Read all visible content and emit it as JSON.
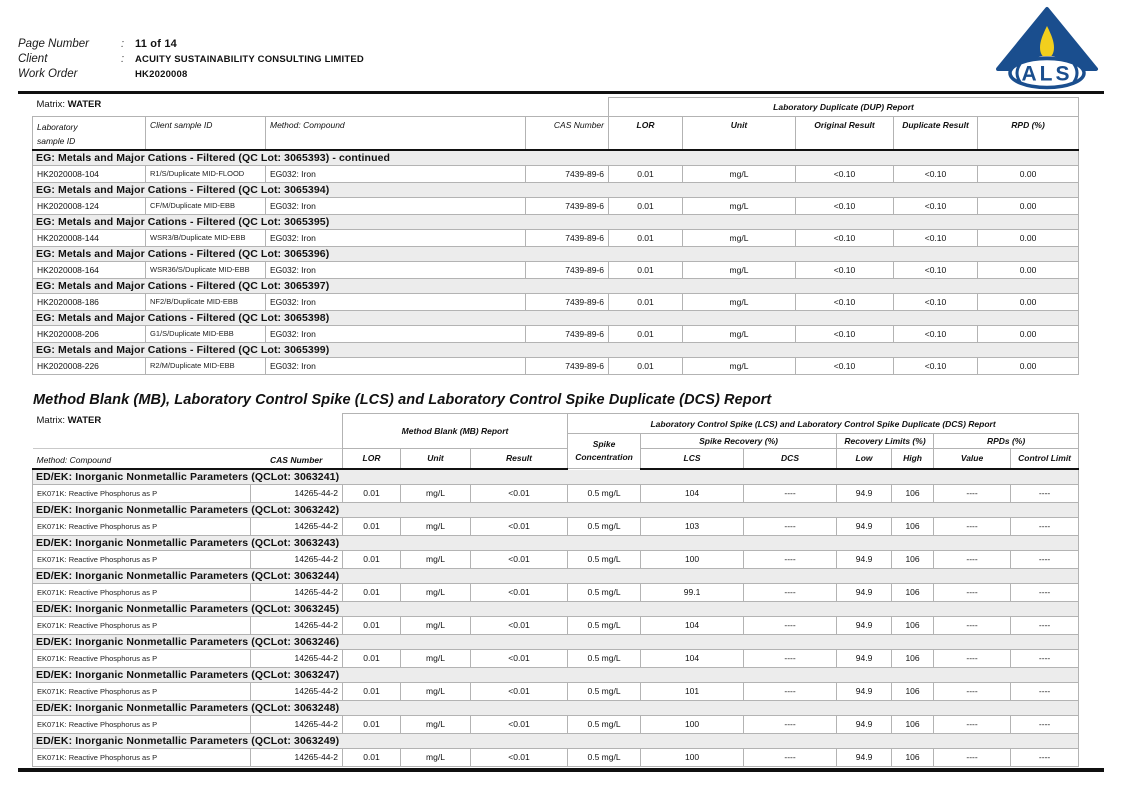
{
  "page_header": {
    "fields": [
      {
        "label": "Page Number",
        "separator": ":",
        "value": "11 of 14"
      },
      {
        "label": "Client",
        "separator": ":",
        "value": "ACUITY SUSTAINABILITY CONSULTING LIMITED"
      },
      {
        "label": "Work Order",
        "separator": ":",
        "value": "HK2020008"
      }
    ],
    "logo_text": "ALS"
  },
  "dup_table": {
    "matrix_label": "Matrix:",
    "matrix_value": "WATER",
    "span_header": "Laboratory Duplicate (DUP) Report",
    "headers": {
      "lab_line1": "Laboratory",
      "lab_line2": "sample ID",
      "client_sample_id": "Client sample ID",
      "method_compound": "Method: Compound",
      "cas_number": "CAS Number",
      "lor": "LOR",
      "unit": "Unit",
      "original_result": "Original Result",
      "duplicate_result": "Duplicate Result",
      "rpd": "RPD (%)"
    },
    "sections": [
      {
        "title": "EG: Metals and Major Cations - Filtered  (QC Lot: 3065393)  - continued",
        "rows": [
          {
            "lab_id": "HK2020008-104",
            "client_id": "R1/S/Duplicate MID-FLOOD",
            "method": "EG032: Iron",
            "cas": "7439-89-6",
            "lor": "0.01",
            "unit": "mg/L",
            "original": "<0.10",
            "duplicate": "<0.10",
            "rpd": "0.00"
          }
        ]
      },
      {
        "title": "EG: Metals and Major Cations - Filtered  (QC Lot: 3065394)",
        "rows": [
          {
            "lab_id": "HK2020008-124",
            "client_id": "CF/M/Duplicate MID-EBB",
            "method": "EG032: Iron",
            "cas": "7439-89-6",
            "lor": "0.01",
            "unit": "mg/L",
            "original": "<0.10",
            "duplicate": "<0.10",
            "rpd": "0.00"
          }
        ]
      },
      {
        "title": "EG: Metals and Major Cations - Filtered  (QC Lot: 3065395)",
        "rows": [
          {
            "lab_id": "HK2020008-144",
            "client_id": "WSR3/B/Duplicate MID-EBB",
            "method": "EG032: Iron",
            "cas": "7439-89-6",
            "lor": "0.01",
            "unit": "mg/L",
            "original": "<0.10",
            "duplicate": "<0.10",
            "rpd": "0.00"
          }
        ]
      },
      {
        "title": "EG: Metals and Major Cations - Filtered  (QC Lot: 3065396)",
        "rows": [
          {
            "lab_id": "HK2020008-164",
            "client_id": "WSR36/S/Duplicate MID-EBB",
            "method": "EG032: Iron",
            "cas": "7439-89-6",
            "lor": "0.01",
            "unit": "mg/L",
            "original": "<0.10",
            "duplicate": "<0.10",
            "rpd": "0.00"
          }
        ]
      },
      {
        "title": "EG: Metals and Major Cations - Filtered  (QC Lot: 3065397)",
        "rows": [
          {
            "lab_id": "HK2020008-186",
            "client_id": "NF2/B/Duplicate MID-EBB",
            "method": "EG032: Iron",
            "cas": "7439-89-6",
            "lor": "0.01",
            "unit": "mg/L",
            "original": "<0.10",
            "duplicate": "<0.10",
            "rpd": "0.00"
          }
        ]
      },
      {
        "title": "EG: Metals and Major Cations - Filtered  (QC Lot: 3065398)",
        "rows": [
          {
            "lab_id": "HK2020008-206",
            "client_id": "G1/S/Duplicate MID-EBB",
            "method": "EG032: Iron",
            "cas": "7439-89-6",
            "lor": "0.01",
            "unit": "mg/L",
            "original": "<0.10",
            "duplicate": "<0.10",
            "rpd": "0.00"
          }
        ]
      },
      {
        "title": "EG: Metals and Major Cations - Filtered  (QC Lot: 3065399)",
        "rows": [
          {
            "lab_id": "HK2020008-226",
            "client_id": "R2/M/Duplicate MID-EBB",
            "method": "EG032: Iron",
            "cas": "7439-89-6",
            "lor": "0.01",
            "unit": "mg/L",
            "original": "<0.10",
            "duplicate": "<0.10",
            "rpd": "0.00"
          }
        ]
      }
    ]
  },
  "mb_title": "Method Blank (MB), Laboratory Control Spike (LCS) and Laboratory Control Spike Duplicate (DCS) Report",
  "mb_table": {
    "matrix_label": "Matrix:",
    "matrix_value": "WATER",
    "mb_span": "Method Blank (MB) Report",
    "lcs_span": "Laboratory Control Spike (LCS) and Laboratory Control Spike Duplicate (DCS) Report",
    "headers": {
      "method_compound": "Method: Compound",
      "cas_number": "CAS Number",
      "lor": "LOR",
      "unit": "Unit",
      "result": "Result",
      "spike_line1": "Spike",
      "spike_line2": "Concentration",
      "spike_recovery": "Spike Recovery (%)",
      "recovery_limits": "Recovery Limits (%)",
      "rpds": "RPDs (%)",
      "lcs": "LCS",
      "dcs": "DCS",
      "low": "Low",
      "high": "High",
      "value": "Value",
      "control_limit": "Control Limit"
    },
    "sections": [
      {
        "title": "ED/EK: Inorganic Nonmetallic Parameters  (QCLot: 3063241)",
        "rows": [
          {
            "compound": "EK071K: Reactive Phosphorus as P",
            "cas": "14265-44-2",
            "lor": "0.01",
            "unit": "mg/L",
            "result": "<0.01",
            "spike_conc": "0.5 mg/L",
            "lcs": "104",
            "dcs": "----",
            "low": "94.9",
            "high": "106",
            "value": "----",
            "control_limit": "----"
          }
        ]
      },
      {
        "title": "ED/EK: Inorganic Nonmetallic Parameters  (QCLot: 3063242)",
        "rows": [
          {
            "compound": "EK071K: Reactive Phosphorus as P",
            "cas": "14265-44-2",
            "lor": "0.01",
            "unit": "mg/L",
            "result": "<0.01",
            "spike_conc": "0.5 mg/L",
            "lcs": "103",
            "dcs": "----",
            "low": "94.9",
            "high": "106",
            "value": "----",
            "control_limit": "----"
          }
        ]
      },
      {
        "title": "ED/EK: Inorganic Nonmetallic Parameters  (QCLot: 3063243)",
        "rows": [
          {
            "compound": "EK071K: Reactive Phosphorus as P",
            "cas": "14265-44-2",
            "lor": "0.01",
            "unit": "mg/L",
            "result": "<0.01",
            "spike_conc": "0.5 mg/L",
            "lcs": "100",
            "dcs": "----",
            "low": "94.9",
            "high": "106",
            "value": "----",
            "control_limit": "----"
          }
        ]
      },
      {
        "title": "ED/EK: Inorganic Nonmetallic Parameters  (QCLot: 3063244)",
        "rows": [
          {
            "compound": "EK071K: Reactive Phosphorus as P",
            "cas": "14265-44-2",
            "lor": "0.01",
            "unit": "mg/L",
            "result": "<0.01",
            "spike_conc": "0.5 mg/L",
            "lcs": "99.1",
            "dcs": "----",
            "low": "94.9",
            "high": "106",
            "value": "----",
            "control_limit": "----"
          }
        ]
      },
      {
        "title": "ED/EK: Inorganic Nonmetallic Parameters  (QCLot: 3063245)",
        "rows": [
          {
            "compound": "EK071K: Reactive Phosphorus as P",
            "cas": "14265-44-2",
            "lor": "0.01",
            "unit": "mg/L",
            "result": "<0.01",
            "spike_conc": "0.5 mg/L",
            "lcs": "104",
            "dcs": "----",
            "low": "94.9",
            "high": "106",
            "value": "----",
            "control_limit": "----"
          }
        ]
      },
      {
        "title": "ED/EK: Inorganic Nonmetallic Parameters  (QCLot: 3063246)",
        "rows": [
          {
            "compound": "EK071K: Reactive Phosphorus as P",
            "cas": "14265-44-2",
            "lor": "0.01",
            "unit": "mg/L",
            "result": "<0.01",
            "spike_conc": "0.5 mg/L",
            "lcs": "104",
            "dcs": "----",
            "low": "94.9",
            "high": "106",
            "value": "----",
            "control_limit": "----"
          }
        ]
      },
      {
        "title": "ED/EK: Inorganic Nonmetallic Parameters  (QCLot: 3063247)",
        "rows": [
          {
            "compound": "EK071K: Reactive Phosphorus as P",
            "cas": "14265-44-2",
            "lor": "0.01",
            "unit": "mg/L",
            "result": "<0.01",
            "spike_conc": "0.5 mg/L",
            "lcs": "101",
            "dcs": "----",
            "low": "94.9",
            "high": "106",
            "value": "----",
            "control_limit": "----"
          }
        ]
      },
      {
        "title": "ED/EK: Inorganic Nonmetallic Parameters  (QCLot: 3063248)",
        "rows": [
          {
            "compound": "EK071K: Reactive Phosphorus as P",
            "cas": "14265-44-2",
            "lor": "0.01",
            "unit": "mg/L",
            "result": "<0.01",
            "spike_conc": "0.5 mg/L",
            "lcs": "100",
            "dcs": "----",
            "low": "94.9",
            "high": "106",
            "value": "----",
            "control_limit": "----"
          }
        ]
      },
      {
        "title": "ED/EK: Inorganic Nonmetallic Parameters  (QCLot: 3063249)",
        "rows": [
          {
            "compound": "EK071K: Reactive Phosphorus as P",
            "cas": "14265-44-2",
            "lor": "0.01",
            "unit": "mg/L",
            "result": "<0.01",
            "spike_conc": "0.5 mg/L",
            "lcs": "100",
            "dcs": "----",
            "low": "94.9",
            "high": "106",
            "value": "----",
            "control_limit": "----"
          }
        ]
      }
    ]
  },
  "colors": {
    "logo_navy": "#1a4e8e",
    "logo_flame_yellow": "#f2cf1d",
    "logo_candle_grey": "#97a1ad",
    "section_row_bg": "#ececec",
    "grid_border": "#b3b3b3",
    "heavy_rule": "#101010"
  }
}
